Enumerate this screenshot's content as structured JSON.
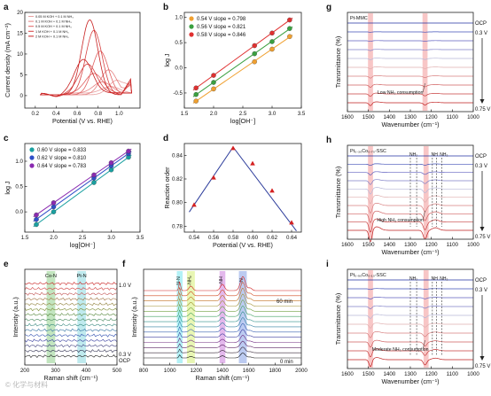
{
  "figure": {
    "watermark": "© 化学与材料"
  },
  "chart_data": [
    {
      "id": "a",
      "panel_label": "a",
      "type": "line",
      "xlabel": "Potential (V vs. RHE)",
      "ylabel": "Current density (mA cm⁻²)",
      "xlim": [
        0.1,
        1.2
      ],
      "ylim": [
        -3,
        20
      ],
      "xticks": [
        0.2,
        0.4,
        0.6,
        0.8,
        1.0
      ],
      "yticks": [
        0,
        5,
        10,
        15,
        20
      ],
      "legend": [
        "0.05 M KOH + 0.1 M NH₃",
        "0.1 M KOH + 0.1 M NH₃",
        "0.5 M KOH + 0.1 M NH₃",
        "1 M KOH + 0.1 M NH₃",
        "2 M KOH + 0.1 M NH₃"
      ],
      "legend_position": "top-left",
      "series": [
        {
          "name": "0.05 M KOH + 0.1 M NH₃",
          "color": "#e8a0a0",
          "peak_potential": 0.98,
          "peak_current": 3.5
        },
        {
          "name": "0.1 M KOH + 0.1 M NH₃",
          "color": "#e58080",
          "peak_potential": 0.9,
          "peak_current": 6.0
        },
        {
          "name": "0.5 M KOH + 0.1 M NH₃",
          "color": "#e06060",
          "peak_potential": 0.82,
          "peak_current": 10.5
        },
        {
          "name": "1 M KOH + 0.1 M NH₃",
          "color": "#d64040",
          "peak_potential": 0.76,
          "peak_current": 15.5
        },
        {
          "name": "2 M KOH + 0.1 M NH₃",
          "color": "#c82020",
          "peak_potential": 0.72,
          "peak_current": 18.0
        }
      ]
    },
    {
      "id": "b",
      "panel_label": "b",
      "type": "scatter",
      "xlabel": "log[OH⁻]",
      "ylabel": "log J",
      "xlim": [
        1.5,
        3.5
      ],
      "ylim": [
        -0.8,
        1.1
      ],
      "xticks": [
        1.5,
        2.0,
        2.5,
        3.0,
        3.5
      ],
      "yticks": [
        -0.5,
        0.0,
        0.5,
        1.0
      ],
      "legend_position": "top-left",
      "x": [
        1.7,
        2.0,
        2.7,
        3.0,
        3.3
      ],
      "series": [
        {
          "name": "0.54 V slope = 0.798",
          "color": "#f0a030",
          "values": [
            -0.66,
            -0.42,
            0.12,
            0.37,
            0.62
          ]
        },
        {
          "name": "0.56 V slope = 0.821",
          "color": "#3aa040",
          "values": [
            -0.53,
            -0.29,
            0.28,
            0.52,
            0.78
          ]
        },
        {
          "name": "0.58 V slope = 0.846",
          "color": "#e03030",
          "values": [
            -0.4,
            -0.15,
            0.44,
            0.69,
            0.95
          ]
        }
      ]
    },
    {
      "id": "c",
      "panel_label": "c",
      "type": "scatter",
      "xlabel": "log[OH⁻]",
      "ylabel": "log J",
      "xlim": [
        1.5,
        3.5
      ],
      "ylim": [
        -0.4,
        1.35
      ],
      "xticks": [
        1.5,
        2.0,
        2.5,
        3.0,
        3.5
      ],
      "yticks": [
        0.0,
        0.5,
        1.0
      ],
      "legend_position": "top-left",
      "x": [
        1.7,
        2.0,
        2.7,
        3.0,
        3.3
      ],
      "series": [
        {
          "name": "0.60 V slope = 0.833",
          "color": "#1aa0a0",
          "values": [
            -0.25,
            0.0,
            0.58,
            0.83,
            1.08
          ]
        },
        {
          "name": "0.62 V slope = 0.810",
          "color": "#3050c8",
          "values": [
            -0.15,
            0.1,
            0.67,
            0.91,
            1.15
          ]
        },
        {
          "name": "0.64 V slope = 0.783",
          "color": "#8a2ab0",
          "values": [
            -0.06,
            0.18,
            0.73,
            0.97,
            1.2
          ]
        }
      ]
    },
    {
      "id": "d",
      "panel_label": "d",
      "type": "line",
      "xlabel": "Potential (V vs. RHE)",
      "ylabel": "Reaction order",
      "xlim": [
        0.53,
        0.65
      ],
      "ylim": [
        0.775,
        0.85
      ],
      "xticks": [
        0.54,
        0.56,
        0.58,
        0.6,
        0.62,
        0.64
      ],
      "yticks": [
        0.78,
        0.8,
        0.82,
        0.84
      ],
      "x": [
        0.54,
        0.56,
        0.58,
        0.6,
        0.62,
        0.64
      ],
      "values": [
        0.798,
        0.821,
        0.846,
        0.833,
        0.81,
        0.783
      ],
      "marker_color": "#d42020",
      "line_color": "#2a3a9a"
    },
    {
      "id": "e",
      "panel_label": "e",
      "type": "line",
      "xlabel": "Raman shift (cm⁻¹)",
      "ylabel": "Intensity (a.u.)",
      "xlim": [
        200,
        500
      ],
      "xticks": [
        200,
        300,
        400,
        500
      ],
      "band_labels": [
        "Co-N",
        "Pt-N"
      ],
      "band_centers": [
        285,
        385
      ],
      "band_colors": [
        "#8fd08a",
        "#8ad8e0"
      ],
      "top_label": "1.0 V",
      "bottom_labels": [
        "0.3 V",
        "OCP"
      ],
      "trace_count": 15
    },
    {
      "id": "f",
      "panel_label": "f",
      "type": "line",
      "xlabel": "Raman shift (cm⁻¹)",
      "ylabel": "Intensity (a.u.)",
      "xlim": [
        800,
        2000
      ],
      "xticks": [
        800,
        1000,
        1200,
        1400,
        1600,
        1800,
        2000
      ],
      "band_labels": [
        "N-N",
        "-NH₂",
        "-NH",
        "-N"
      ],
      "band_centers": [
        1075,
        1160,
        1400,
        1555
      ],
      "band_colors": [
        "#80e8f0",
        "#d8f080",
        "#d088e0",
        "#90a8e8"
      ],
      "top_label": "60 min",
      "bottom_label": "0 min",
      "trace_count": 14
    },
    {
      "id": "g",
      "panel_label": "g",
      "type": "line",
      "title": "Pt-MMC",
      "xlabel": "Wavenumber (cm⁻¹)",
      "ylabel": "Transmittance (%)",
      "xlim": [
        1600,
        1000
      ],
      "xticks": [
        1600,
        1500,
        1400,
        1300,
        1200,
        1100,
        1000
      ],
      "right_labels": [
        "OCP",
        "0.3 V",
        "0.75 V"
      ],
      "annotation": "Low NH₃ consumption",
      "band_centers": [
        1490,
        1230
      ],
      "band_color": "#f4a0a0",
      "trace_count": 10
    },
    {
      "id": "h",
      "panel_label": "h",
      "type": "line",
      "title": "Pt₀.₃₀Co₀.₇₀-SSC",
      "xlabel": "Wavenumber (cm⁻¹)",
      "ylabel": "Transmittance (%)",
      "xlim": [
        1600,
        1000
      ],
      "xticks": [
        1600,
        1500,
        1400,
        1300,
        1200,
        1100,
        1000
      ],
      "right_labels": [
        "OCP",
        "0.3 V",
        "0.75 V"
      ],
      "annotation": "High NH₃ consumption",
      "markers": [
        "NH₂",
        "NH",
        "NH₂"
      ],
      "band_centers": [
        1490,
        1225
      ],
      "band_color": "#f4a0a0",
      "trace_count": 10
    },
    {
      "id": "i",
      "panel_label": "i",
      "type": "line",
      "title": "Pt₀.₉₀Co₀.₁₀-SSC",
      "xlabel": "Wavenumber (cm⁻¹)",
      "ylabel": "Transmittance (%)",
      "xlim": [
        1600,
        1000
      ],
      "xticks": [
        1600,
        1500,
        1400,
        1300,
        1200,
        1100,
        1000
      ],
      "right_labels": [
        "OCP",
        "0.3 V",
        "0.75 V"
      ],
      "annotation": "Moderate NH₃ consumption",
      "markers": [
        "NH₂",
        "NH",
        "NH₂"
      ],
      "band_centers": [
        1490,
        1225
      ],
      "band_color": "#f4a0a0",
      "trace_count": 10
    }
  ]
}
